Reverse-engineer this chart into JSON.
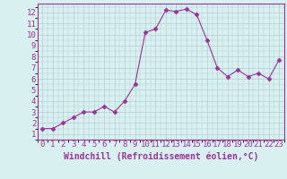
{
  "x": [
    0,
    1,
    2,
    3,
    4,
    5,
    6,
    7,
    8,
    9,
    10,
    11,
    12,
    13,
    14,
    15,
    16,
    17,
    18,
    19,
    20,
    21,
    22,
    23
  ],
  "y": [
    1.5,
    1.5,
    2.0,
    2.5,
    3.0,
    3.0,
    3.5,
    3.0,
    4.0,
    5.5,
    10.2,
    10.5,
    12.2,
    12.1,
    12.3,
    11.8,
    9.5,
    7.0,
    6.2,
    6.8,
    6.2,
    6.5,
    6.0,
    7.7
  ],
  "line_color": "#993399",
  "marker": "D",
  "marker_size": 2.5,
  "bg_color": "#d8f0f0",
  "grid_color": "#b0d0d0",
  "xlabel": "Windchill (Refroidissement éolien,°C)",
  "xlabel_color": "#993399",
  "ylabel_ticks": [
    1,
    2,
    3,
    4,
    5,
    6,
    7,
    8,
    9,
    10,
    11,
    12
  ],
  "xlim": [
    -0.5,
    23.5
  ],
  "ylim": [
    0.5,
    12.8
  ],
  "xticks": [
    0,
    1,
    2,
    3,
    4,
    5,
    6,
    7,
    8,
    9,
    10,
    11,
    12,
    13,
    14,
    15,
    16,
    17,
    18,
    19,
    20,
    21,
    22,
    23
  ],
  "tick_color": "#993399",
  "spine_color": "#993399",
  "font_size": 6.5,
  "label_font_size": 7.0
}
